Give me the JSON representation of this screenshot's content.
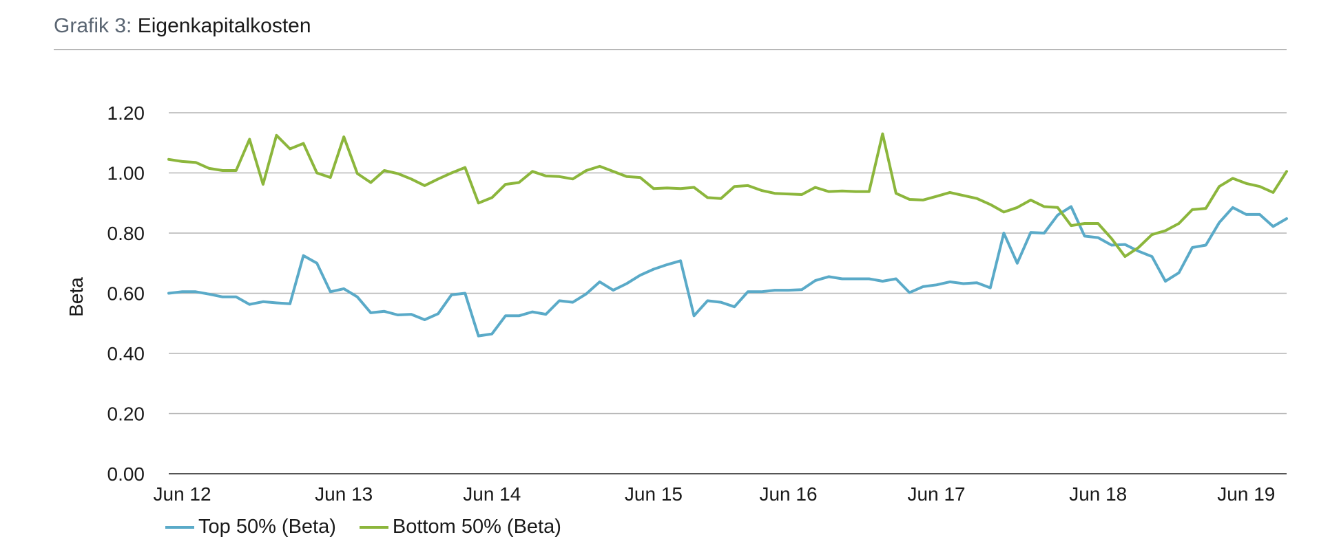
{
  "header": {
    "prefix": "Grafik 3:",
    "title": "Eigenkapitalkosten"
  },
  "chart_data": {
    "type": "line",
    "ylabel": "Beta",
    "xlabel": "",
    "ylim": [
      0,
      1.2
    ],
    "yticks": [
      "0.00",
      "0.20",
      "0.40",
      "0.60",
      "0.80",
      "1.00",
      "1.20"
    ],
    "ytick_values": [
      0,
      0.2,
      0.4,
      0.6,
      0.8,
      1.0,
      1.2
    ],
    "xtick_labels": [
      "Jun 12",
      "Jun 13",
      "Jun 14",
      "Jun 15",
      "Jun 16",
      "Jun 17",
      "Jun 18",
      "Jun 19"
    ],
    "xtick_index": [
      1,
      13,
      24,
      36,
      46,
      57,
      69,
      80
    ],
    "grid": true,
    "legend_position": "bottom-left",
    "series": [
      {
        "name": "Top 50% (Beta)",
        "color": "#5aaac8",
        "values": [
          0.6,
          0.605,
          0.605,
          0.597,
          0.588,
          0.588,
          0.563,
          0.572,
          0.568,
          0.565,
          0.725,
          0.7,
          0.605,
          0.615,
          0.588,
          0.535,
          0.54,
          0.528,
          0.53,
          0.512,
          0.532,
          0.595,
          0.6,
          0.458,
          0.465,
          0.525,
          0.525,
          0.538,
          0.53,
          0.575,
          0.57,
          0.598,
          0.638,
          0.61,
          0.632,
          0.66,
          0.68,
          0.695,
          0.708,
          0.525,
          0.575,
          0.57,
          0.555,
          0.605,
          0.605,
          0.61,
          0.61,
          0.612,
          0.642,
          0.655,
          0.648,
          0.648,
          0.648,
          0.64,
          0.648,
          0.602,
          0.622,
          0.628,
          0.638,
          0.632,
          0.635,
          0.618,
          0.8,
          0.7,
          0.802,
          0.8,
          0.86,
          0.888,
          0.79,
          0.785,
          0.76,
          0.762,
          0.74,
          0.722,
          0.64,
          0.668,
          0.752,
          0.76,
          0.835,
          0.885,
          0.862,
          0.862,
          0.822,
          0.848
        ]
      },
      {
        "name": "Bottom 50% (Beta)",
        "color": "#8cb63c",
        "values": [
          1.045,
          1.038,
          1.035,
          1.015,
          1.008,
          1.008,
          1.112,
          0.962,
          1.125,
          1.08,
          1.098,
          1.0,
          0.985,
          1.12,
          0.998,
          0.968,
          1.008,
          0.998,
          0.98,
          0.958,
          0.98,
          1.0,
          1.018,
          0.9,
          0.918,
          0.962,
          0.968,
          1.005,
          0.99,
          0.988,
          0.98,
          1.008,
          1.022,
          1.005,
          0.988,
          0.985,
          0.948,
          0.95,
          0.948,
          0.952,
          0.918,
          0.915,
          0.955,
          0.958,
          0.942,
          0.932,
          0.93,
          0.928,
          0.952,
          0.938,
          0.94,
          0.938,
          0.938,
          1.13,
          0.932,
          0.912,
          0.91,
          0.922,
          0.935,
          0.925,
          0.915,
          0.895,
          0.87,
          0.885,
          0.91,
          0.888,
          0.885,
          0.825,
          0.832,
          0.832,
          0.782,
          0.722,
          0.752,
          0.795,
          0.808,
          0.832,
          0.878,
          0.882,
          0.955,
          0.982,
          0.965,
          0.955,
          0.935,
          1.005
        ]
      }
    ]
  }
}
